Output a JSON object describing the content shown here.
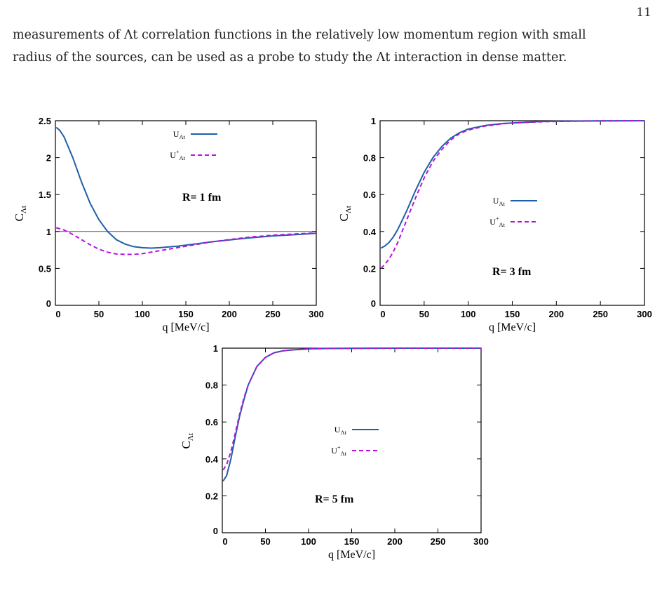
{
  "page": {
    "number": "11",
    "text_line_1": "measurements of Λt correlation functions in the relatively low momentum region with small",
    "text_line_2": "radius of the sources, can be used as a probe to study the Λt interaction in dense matter."
  },
  "colors": {
    "solid_series": "#1f5fa8",
    "dashed_series": "#b512e0",
    "reference_line": "#555555"
  },
  "chart_data": [
    {
      "type": "line",
      "panel_label": "R= 1 fm",
      "xlabel": "q [MeV/c]",
      "ylabel_main": "C",
      "ylabel_sub": "Λt",
      "xlim": [
        0,
        300
      ],
      "ylim": [
        0,
        2.5
      ],
      "xticks": [
        0,
        50,
        100,
        150,
        200,
        250,
        300
      ],
      "xtick_labels": [
        "0",
        "50",
        "100",
        "150",
        "200",
        "250",
        "300"
      ],
      "yticks": [
        0,
        0.5,
        1,
        1.5,
        2,
        2.5
      ],
      "ytick_labels": [
        "0",
        "0.5",
        "1",
        "1.5",
        "2",
        "2.5"
      ],
      "reference_line_y": 1,
      "legend_position": "top-right",
      "series": [
        {
          "label_main": "U",
          "label_sup": "",
          "label_sub": "Λt",
          "style": "solid",
          "x": [
            1,
            5,
            10,
            20,
            30,
            40,
            50,
            60,
            70,
            80,
            90,
            100,
            110,
            120,
            140,
            160,
            180,
            200,
            220,
            250,
            280,
            300
          ],
          "y": [
            2.41,
            2.37,
            2.28,
            2.0,
            1.67,
            1.38,
            1.16,
            1.0,
            0.89,
            0.83,
            0.795,
            0.78,
            0.775,
            0.78,
            0.8,
            0.83,
            0.86,
            0.885,
            0.91,
            0.94,
            0.96,
            0.975
          ]
        },
        {
          "label_main": "U",
          "label_sup": "+",
          "label_sub": "Λt",
          "style": "dashed",
          "x": [
            1,
            10,
            20,
            30,
            40,
            50,
            60,
            70,
            80,
            90,
            100,
            110,
            120,
            140,
            160,
            180,
            200,
            220,
            250,
            280,
            300
          ],
          "y": [
            1.05,
            1.02,
            0.96,
            0.89,
            0.82,
            0.76,
            0.72,
            0.695,
            0.69,
            0.69,
            0.7,
            0.72,
            0.74,
            0.78,
            0.82,
            0.86,
            0.89,
            0.92,
            0.95,
            0.97,
            0.98
          ]
        }
      ]
    },
    {
      "type": "line",
      "panel_label": "R= 3 fm",
      "xlabel": "q [MeV/c]",
      "ylabel_main": "C",
      "ylabel_sub": "Λt",
      "xlim": [
        0,
        300
      ],
      "ylim": [
        0,
        1
      ],
      "xticks": [
        0,
        50,
        100,
        150,
        200,
        250,
        300
      ],
      "xtick_labels": [
        "0",
        "50",
        "100",
        "150",
        "200",
        "250",
        "300"
      ],
      "yticks": [
        0,
        0.2,
        0.4,
        0.6,
        0.8,
        1
      ],
      "ytick_labels": [
        "0",
        "0.2",
        "0.4",
        "0.6",
        "0.8",
        "1"
      ],
      "legend_position": "right",
      "series": [
        {
          "label_main": "U",
          "label_sup": "",
          "label_sub": "Λt",
          "style": "solid",
          "x": [
            1,
            5,
            10,
            15,
            20,
            30,
            40,
            50,
            60,
            70,
            80,
            90,
            100,
            120,
            140,
            160,
            180,
            200,
            250,
            300
          ],
          "y": [
            0.31,
            0.32,
            0.34,
            0.37,
            0.41,
            0.51,
            0.62,
            0.72,
            0.8,
            0.86,
            0.905,
            0.935,
            0.955,
            0.975,
            0.985,
            0.99,
            0.995,
            0.997,
            0.999,
            1.0
          ]
        },
        {
          "label_main": "U",
          "label_sup": "+",
          "label_sub": "Λt",
          "style": "dashed",
          "x": [
            1,
            5,
            10,
            15,
            20,
            30,
            40,
            50,
            60,
            70,
            80,
            90,
            100,
            120,
            140,
            160,
            180,
            200,
            250,
            300
          ],
          "y": [
            0.2,
            0.22,
            0.25,
            0.29,
            0.34,
            0.46,
            0.58,
            0.69,
            0.78,
            0.845,
            0.895,
            0.93,
            0.95,
            0.972,
            0.984,
            0.99,
            0.994,
            0.996,
            0.999,
            1.0
          ]
        }
      ]
    },
    {
      "type": "line",
      "panel_label": "R= 5 fm",
      "xlabel": "q [MeV/c]",
      "ylabel_main": "C",
      "ylabel_sub": "Λt",
      "xlim": [
        0,
        300
      ],
      "ylim": [
        0,
        1
      ],
      "xticks": [
        0,
        50,
        100,
        150,
        200,
        250,
        300
      ],
      "xtick_labels": [
        "0",
        "50",
        "100",
        "150",
        "200",
        "250",
        "300"
      ],
      "yticks": [
        0,
        0.2,
        0.4,
        0.6,
        0.8,
        1
      ],
      "ytick_labels": [
        "0",
        "0.2",
        "0.4",
        "0.6",
        "0.8",
        "1"
      ],
      "legend_position": "right",
      "series": [
        {
          "label_main": "U",
          "label_sup": "",
          "label_sub": "Λt",
          "style": "solid",
          "x": [
            1,
            5,
            10,
            15,
            20,
            25,
            30,
            40,
            50,
            60,
            70,
            80,
            100,
            120,
            150,
            200,
            250,
            300
          ],
          "y": [
            0.28,
            0.31,
            0.4,
            0.52,
            0.63,
            0.72,
            0.8,
            0.9,
            0.95,
            0.975,
            0.985,
            0.99,
            0.996,
            0.998,
            0.999,
            1.0,
            1.0,
            1.0
          ]
        },
        {
          "label_main": "U",
          "label_sup": "+",
          "label_sub": "Λt",
          "style": "dashed",
          "x": [
            1,
            5,
            10,
            15,
            20,
            25,
            30,
            40,
            50,
            60,
            70,
            80,
            100,
            120,
            150,
            200,
            250,
            300
          ],
          "y": [
            0.34,
            0.37,
            0.44,
            0.54,
            0.64,
            0.73,
            0.8,
            0.9,
            0.95,
            0.975,
            0.985,
            0.99,
            0.996,
            0.998,
            0.999,
            1.0,
            1.0,
            1.0
          ]
        }
      ]
    }
  ]
}
